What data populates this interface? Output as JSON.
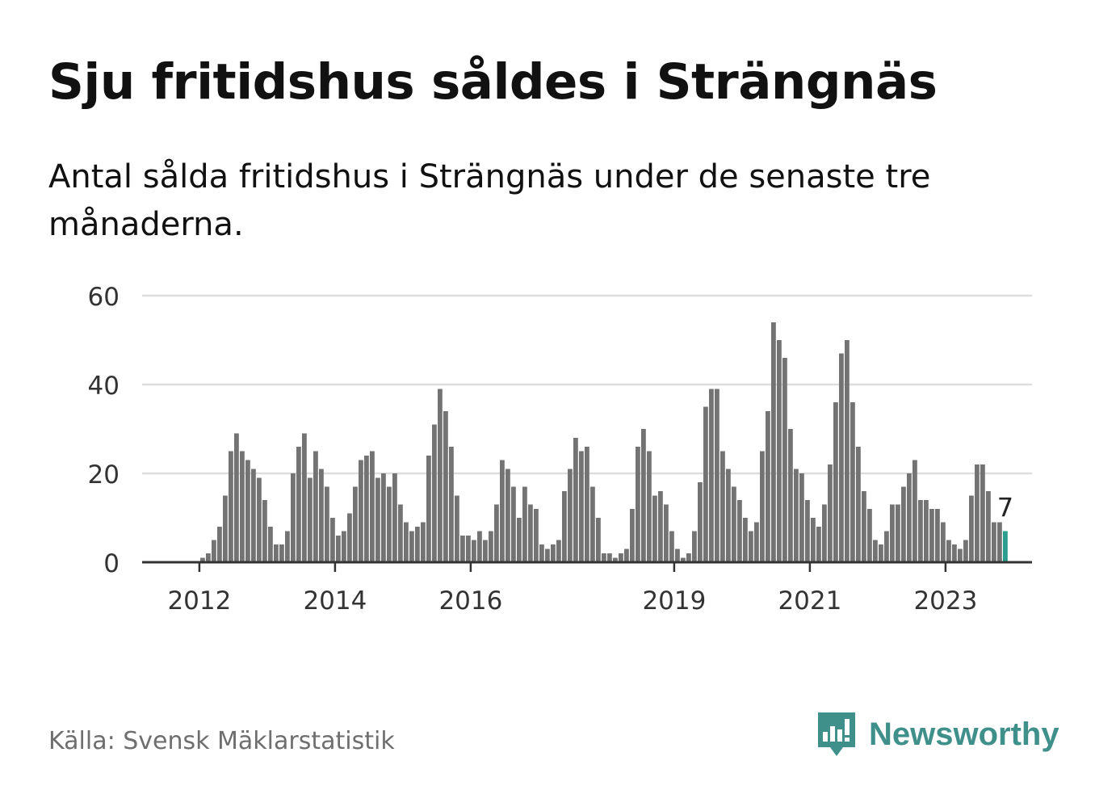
{
  "title": "Sju fritidshus såldes i Strängnäs",
  "subtitle": "Antal sålda fritidshus i Strängnäs under de senaste tre månaderna.",
  "source": "Källa: Svensk Mäklarstatistik",
  "logo": {
    "text": "Newsworthy",
    "icon": "bar-chart-speech-bubble-icon",
    "color": "#3f8f8a"
  },
  "colors": {
    "bar": "#737373",
    "highlight": "#2a9d8f",
    "grid": "#dddddd",
    "axis": "#333333"
  },
  "chart_data": {
    "type": "bar",
    "ylim": [
      0,
      60
    ],
    "yticks": [
      "0",
      "20",
      "40",
      "60"
    ],
    "grid": true,
    "x_start": "2011-04",
    "x_end": "2023-09",
    "xtick_labels": [
      {
        "label": "2012",
        "month": "2012-01"
      },
      {
        "label": "2014",
        "month": "2014-01"
      },
      {
        "label": "2016",
        "month": "2016-01"
      },
      {
        "label": "2019",
        "month": "2019-01"
      },
      {
        "label": "2021",
        "month": "2021-01"
      },
      {
        "label": "2023",
        "month": "2023-01"
      }
    ],
    "values": [
      0,
      0,
      0,
      0,
      0,
      0,
      0,
      0,
      0,
      1,
      2,
      5,
      8,
      15,
      25,
      29,
      25,
      23,
      21,
      19,
      14,
      8,
      4,
      4,
      7,
      20,
      26,
      29,
      19,
      25,
      21,
      17,
      10,
      6,
      7,
      11,
      17,
      23,
      24,
      25,
      19,
      20,
      17,
      20,
      13,
      9,
      7,
      8,
      9,
      24,
      31,
      39,
      34,
      26,
      15,
      6,
      6,
      5,
      7,
      5,
      7,
      13,
      23,
      21,
      17,
      10,
      17,
      13,
      12,
      4,
      3,
      4,
      5,
      16,
      21,
      28,
      25,
      26,
      17,
      10,
      2,
      2,
      1,
      2,
      3,
      12,
      26,
      30,
      25,
      15,
      16,
      13,
      7,
      3,
      1,
      2,
      7,
      18,
      35,
      39,
      39,
      25,
      21,
      17,
      14,
      10,
      7,
      9,
      25,
      34,
      54,
      50,
      46,
      30,
      21,
      20,
      14,
      10,
      8,
      13,
      22,
      36,
      47,
      50,
      36,
      26,
      16,
      12,
      5,
      4,
      7,
      13,
      13,
      17,
      20,
      23,
      14,
      14,
      12,
      12,
      9,
      5,
      4,
      3,
      5,
      15,
      22,
      22,
      16,
      9,
      9,
      7
    ],
    "highlight_last": true,
    "annotation": {
      "label": "7"
    }
  }
}
